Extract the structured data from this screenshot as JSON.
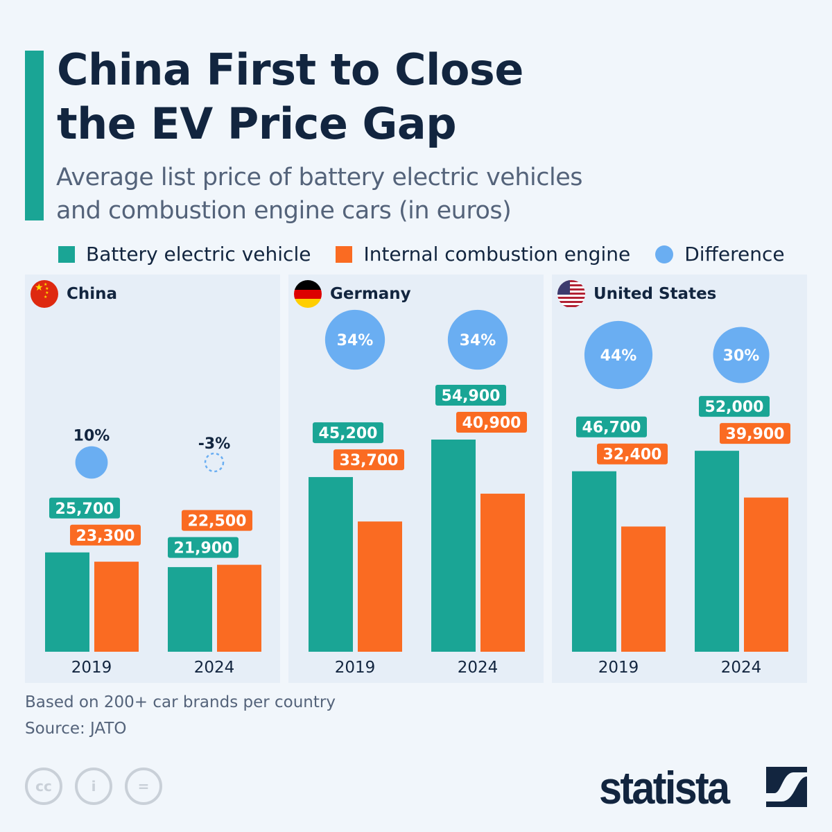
{
  "header": {
    "title": "China First to Close\nthe EV Price Gap",
    "subtitle": "Average list price of battery electric vehicles\nand combustion engine cars (in euros)"
  },
  "legend": [
    {
      "label": "Battery electric vehicle",
      "color": "#1aa595"
    },
    {
      "label": "Internal combustion engine",
      "color": "#fa6b22"
    },
    {
      "label": "Difference",
      "color": "#6aaef2"
    }
  ],
  "footer": {
    "note": "Based on 200+ car brands per country",
    "source": "Source: JATO",
    "brand": "statista"
  },
  "chart_data": {
    "type": "bar",
    "categories": [
      "2019",
      "2024"
    ],
    "panels": [
      {
        "country": "China",
        "flag": "china-flag",
        "bev": [
          25700,
          21900
        ],
        "ice": [
          23300,
          22500
        ],
        "difference": [
          "10%",
          "-3%"
        ],
        "difference_values": [
          10,
          -3
        ]
      },
      {
        "country": "Germany",
        "flag": "germany-flag",
        "bev": [
          45200,
          54900
        ],
        "ice": [
          33700,
          40900
        ],
        "difference": [
          "34%",
          "34%"
        ],
        "difference_values": [
          34,
          34
        ]
      },
      {
        "country": "United States",
        "flag": "us-flag",
        "bev": [
          46700,
          52000
        ],
        "ice": [
          32400,
          39900
        ],
        "difference": [
          "44%",
          "30%"
        ],
        "difference_values": [
          44,
          30
        ]
      }
    ],
    "series": [
      {
        "name": "Battery electric vehicle"
      },
      {
        "name": "Internal combustion engine"
      },
      {
        "name": "Difference"
      }
    ],
    "ylim": [
      0,
      60000
    ],
    "grid": false,
    "legend_position": "top"
  }
}
